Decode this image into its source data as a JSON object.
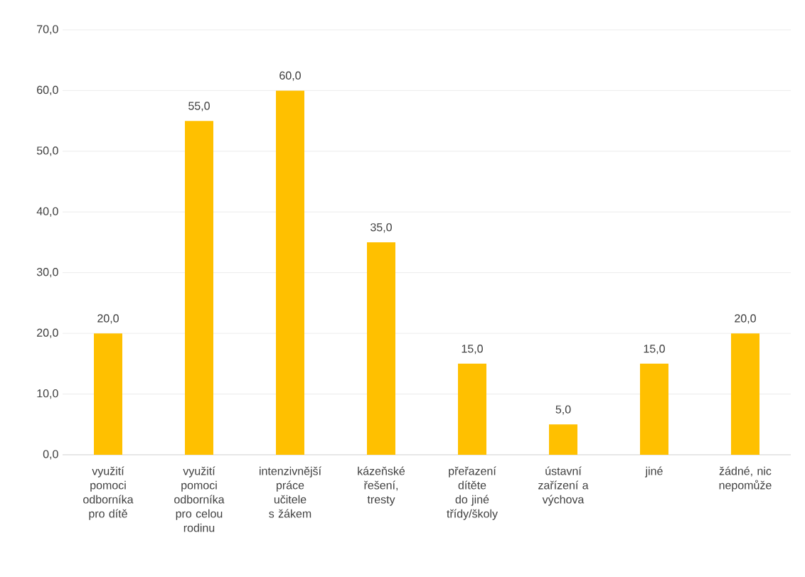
{
  "chart_data": {
    "type": "bar",
    "categories": [
      "využití pomoci odborníka pro dítě",
      "využití pomoci odborníka pro celou rodinu",
      "intenzivnější práce učitele s žákem",
      "kázeňské řešení, tresty",
      "přeřazení dítěte do jiné třídy/školy",
      "ústavní zařízení a výchova",
      "jiné",
      "žádné, nic nepomůže"
    ],
    "values": [
      20,
      55,
      60,
      35,
      15,
      5,
      15,
      20
    ],
    "value_labels": [
      "20,0",
      "55,0",
      "60,0",
      "35,0",
      "15,0",
      "5,0",
      "15,0",
      "20,0"
    ],
    "color": "#ffc000",
    "ylim": [
      0,
      70
    ],
    "yticks": [
      {
        "value": 0,
        "label": "0,0"
      },
      {
        "value": 10,
        "label": "10,0"
      },
      {
        "value": 20,
        "label": "20,0"
      },
      {
        "value": 30,
        "label": "30,0"
      },
      {
        "value": 40,
        "label": "40,0"
      },
      {
        "value": 50,
        "label": "50,0"
      },
      {
        "value": 60,
        "label": "60,0"
      },
      {
        "value": 70,
        "label": "70,0"
      }
    ],
    "grid": "y"
  }
}
